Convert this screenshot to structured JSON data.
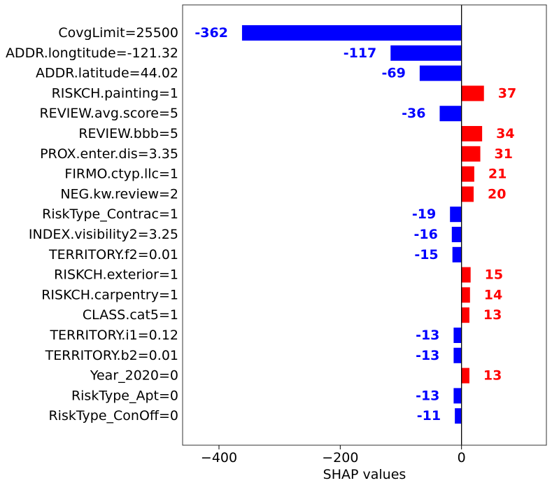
{
  "chart_data": {
    "type": "bar",
    "orientation": "horizontal",
    "categories": [
      "CovgLimit=25500",
      "ADDR.longtitude=-121.32",
      "ADDR.latitude=44.02",
      "RISKCH.painting=1",
      "REVIEW.avg.score=5",
      "REVIEW.bbb=5",
      "PROX.enter.dis=3.35",
      "FIRMO.ctyp.llc=1",
      "NEG.kw.review=2",
      "RiskType_Contrac=1",
      "INDEX.visibility2=3.25",
      "TERRITORY.f2=0.01",
      "RISKCH.exterior=1",
      "RISKCH.carpentry=1",
      "CLASS.cat5=1",
      "TERRITORY.i1=0.12",
      "TERRITORY.b2=0.01",
      "Year_2020=0",
      "RiskType_Apt=0",
      "RiskType_ConOff=0"
    ],
    "values": [
      -362,
      -117,
      -69,
      37,
      -36,
      34,
      31,
      21,
      20,
      -19,
      -16,
      -15,
      15,
      14,
      13,
      -13,
      -13,
      13,
      -13,
      -11
    ],
    "value_labels": [
      "-362",
      "-117",
      "-69",
      "37",
      "-36",
      "34",
      "31",
      "21",
      "20",
      "-19",
      "-16",
      "-15",
      "15",
      "14",
      "13",
      "-13",
      "-13",
      "13",
      "-13",
      "-11"
    ],
    "xlabel": "SHAP values",
    "xlim": [
      -460,
      140
    ],
    "xticks": [
      -400,
      -200,
      0
    ],
    "xtick_labels": [
      "−400",
      "−200",
      "0"
    ],
    "grid": false,
    "zero_line": true,
    "colors": {
      "positive": "#ff0000",
      "negative": "#0000ff",
      "axis": "#000000"
    }
  }
}
